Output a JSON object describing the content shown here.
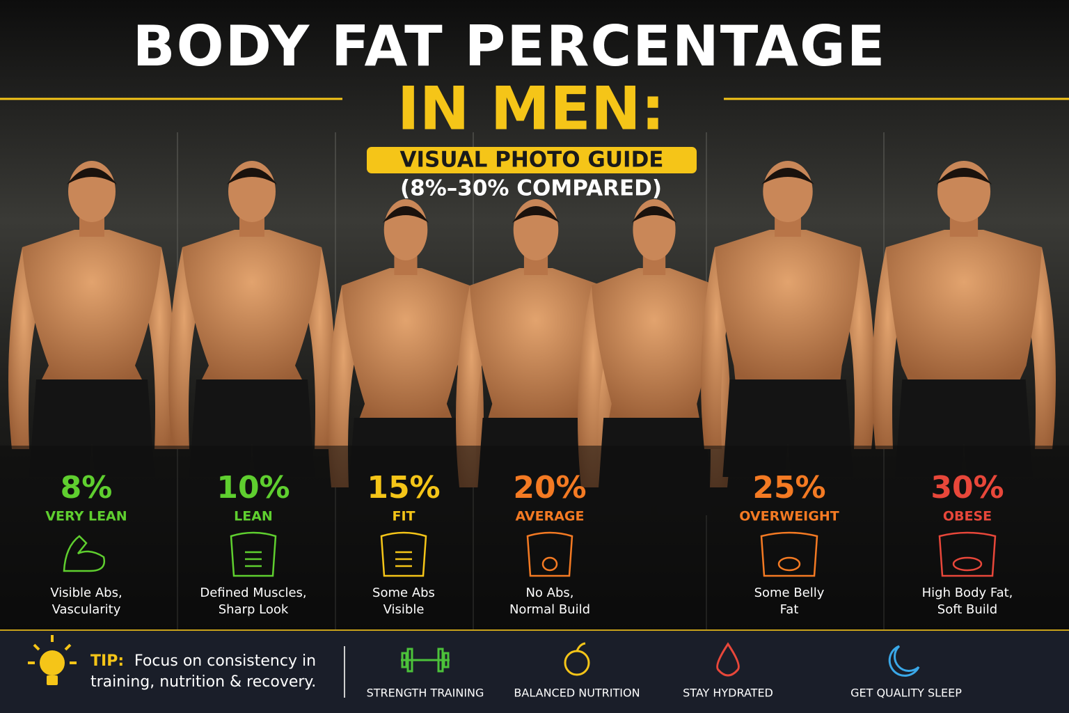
{
  "header": {
    "title_line1": "BODY FAT PERCENTAGE",
    "title_line2": "IN MEN:",
    "badge": "VISUAL PHOTO GUIDE",
    "subtitle": "(8%–30% COMPARED)"
  },
  "levels": [
    {
      "percent": "8%",
      "label": "VERY LEAN",
      "description": [
        "Visible Abs,",
        "Vascularity"
      ],
      "color": "#5fcf2f"
    },
    {
      "percent": "10%",
      "label": "LEAN",
      "description": [
        "Defined Muscles,",
        "Sharp Look"
      ],
      "color": "#5fcf2f"
    },
    {
      "percent": "15%",
      "label": "FIT",
      "description": [
        "Some Abs",
        "Visible"
      ],
      "color": "#f5c518"
    },
    {
      "percent": "20%",
      "label": "AVERAGE",
      "description": [
        "No Abs,",
        "Normal Build"
      ],
      "color": "#f47a23"
    },
    {
      "percent": "25%",
      "label": "OVERWEIGHT",
      "description": [
        "Some Belly",
        "Fat"
      ],
      "color": "#f47a23"
    },
    {
      "percent": "30%",
      "label": "OBESE",
      "description": [
        "High Body Fat,",
        "Soft Build"
      ],
      "color": "#e8473a"
    }
  ],
  "tip": {
    "label": "TIP:",
    "text": [
      "Focus on consistency in",
      "training, nutrition & recovery."
    ]
  },
  "habits": [
    {
      "label": "STRENGTH TRAINING",
      "color": "#4cc23a"
    },
    {
      "label": "BALANCED NUTRITION",
      "color": "#f5c518"
    },
    {
      "label": "STAY HYDRATED",
      "color": "#e8473a"
    },
    {
      "label": "GET QUALITY SLEEP",
      "color": "#3aa8e8"
    }
  ]
}
